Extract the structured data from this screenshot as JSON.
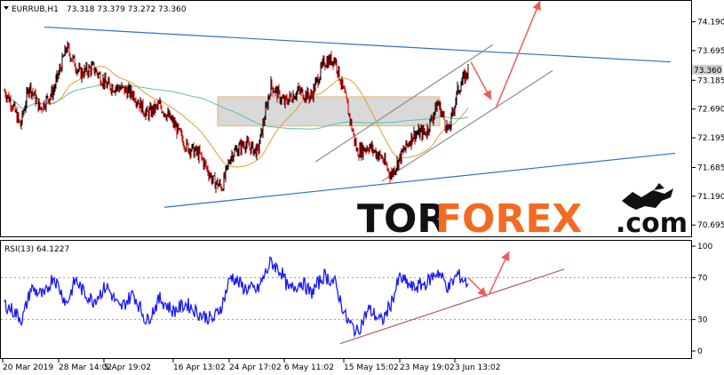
{
  "chart_data": [
    {
      "type": "candlestick",
      "symbol_header": "EURRUB,H1",
      "ohlc_header": "73.318 73.379 73.272 73.360",
      "current_price_label": "73.360",
      "ylim": [
        70.5,
        74.55
      ],
      "y_ticks": [
        "74.190",
        "73.695",
        "73.185",
        "72.690",
        "72.195",
        "71.685",
        "71.190",
        "70.695"
      ],
      "x_ticks": [
        "20 Mar 2019",
        "28 Mar 14:02",
        "5 Apr 19:02",
        "16 Apr 13:02",
        "24 Apr 17:02",
        "6 May 11:02",
        "15 May 15:02",
        "23 May 19:02",
        "3 Jun 13:02"
      ],
      "price_keypoints": [
        [
          0,
          73.0
        ],
        [
          8,
          72.8
        ],
        [
          18,
          72.4
        ],
        [
          28,
          73.1
        ],
        [
          40,
          72.7
        ],
        [
          55,
          73.0
        ],
        [
          70,
          73.75
        ],
        [
          85,
          73.3
        ],
        [
          100,
          73.4
        ],
        [
          115,
          73.1
        ],
        [
          130,
          73.05
        ],
        [
          145,
          72.95
        ],
        [
          160,
          72.6
        ],
        [
          175,
          72.75
        ],
        [
          190,
          72.45
        ],
        [
          205,
          72.05
        ],
        [
          220,
          71.9
        ],
        [
          235,
          71.45
        ],
        [
          245,
          71.35
        ],
        [
          255,
          71.9
        ],
        [
          270,
          72.1
        ],
        [
          285,
          71.95
        ],
        [
          300,
          73.1
        ],
        [
          315,
          72.8
        ],
        [
          330,
          73.0
        ],
        [
          345,
          72.9
        ],
        [
          360,
          73.5
        ],
        [
          372,
          73.55
        ],
        [
          385,
          72.8
        ],
        [
          397,
          71.95
        ],
        [
          410,
          72.05
        ],
        [
          425,
          71.85
        ],
        [
          435,
          71.55
        ],
        [
          445,
          71.85
        ],
        [
          460,
          72.25
        ],
        [
          475,
          72.3
        ],
        [
          488,
          72.8
        ],
        [
          500,
          72.3
        ],
        [
          510,
          73.0
        ],
        [
          522,
          73.36
        ]
      ],
      "zone_box": {
        "from_index": 240,
        "to_index": 490,
        "low": 72.4,
        "high": 72.9
      },
      "trend_lines": [
        {
          "color": "#2f6fd6",
          "points": [
            [
              45,
              74.1
            ],
            [
              750,
              73.5
            ]
          ]
        },
        {
          "color": "#2f6fd6",
          "points": [
            [
              180,
              71.0
            ],
            [
              755,
              71.93
            ]
          ]
        },
        {
          "color": "#8c8c8c",
          "points": [
            [
              350,
              71.78
            ],
            [
              550,
              73.8
            ]
          ]
        },
        {
          "color": "#8c8c8c",
          "points": [
            [
              425,
              71.45
            ],
            [
              617,
              73.35
            ]
          ]
        }
      ],
      "forecast_arrows": [
        {
          "color": "#f05b55",
          "points": [
            [
              525,
              73.5
            ],
            [
              548,
              72.85
            ]
          ]
        },
        {
          "color": "#f05b55",
          "points": [
            [
              553,
              72.7
            ],
            [
              603,
              74.55
            ]
          ]
        }
      ]
    },
    {
      "type": "line",
      "indicator_header": "RSI(13) 64.1227",
      "ylim": [
        0,
        100
      ],
      "y_ticks": [
        "100",
        "70",
        "30",
        "0"
      ],
      "levels": [
        70,
        30
      ],
      "rsi_keypoints": [
        [
          0,
          45
        ],
        [
          10,
          38
        ],
        [
          20,
          30
        ],
        [
          30,
          60
        ],
        [
          45,
          52
        ],
        [
          55,
          72
        ],
        [
          70,
          45
        ],
        [
          80,
          68
        ],
        [
          90,
          55
        ],
        [
          100,
          48
        ],
        [
          115,
          62
        ],
        [
          130,
          40
        ],
        [
          145,
          55
        ],
        [
          160,
          28
        ],
        [
          175,
          50
        ],
        [
          190,
          38
        ],
        [
          205,
          45
        ],
        [
          220,
          35
        ],
        [
          235,
          30
        ],
        [
          245,
          44
        ],
        [
          255,
          72
        ],
        [
          270,
          60
        ],
        [
          285,
          58
        ],
        [
          300,
          85
        ],
        [
          312,
          75
        ],
        [
          320,
          58
        ],
        [
          335,
          66
        ],
        [
          345,
          55
        ],
        [
          360,
          72
        ],
        [
          372,
          65
        ],
        [
          385,
          30
        ],
        [
          397,
          18
        ],
        [
          410,
          40
        ],
        [
          425,
          28
        ],
        [
          435,
          45
        ],
        [
          445,
          70
        ],
        [
          460,
          60
        ],
        [
          475,
          65
        ],
        [
          488,
          76
        ],
        [
          500,
          60
        ],
        [
          510,
          73
        ],
        [
          522,
          64.12
        ]
      ],
      "trend_lines": [
        {
          "color": "#b06060",
          "points": [
            [
              378,
              7
            ],
            [
              630,
              78
            ]
          ]
        }
      ],
      "forecast_arrows": [
        {
          "color": "#f05b55",
          "points": [
            [
              522,
              70
            ],
            [
              543,
              52
            ]
          ]
        },
        {
          "color": "#f05b55",
          "points": [
            [
              546,
              55
            ],
            [
              568,
              95
            ]
          ]
        }
      ]
    }
  ],
  "watermark": {
    "tor": "TOR",
    "forex": "FOREX",
    "com": ".com"
  },
  "colors": {
    "bull_candle": "#000000",
    "bear_candle": "#d20000",
    "ma_fast": "#e0a030",
    "ma_slow": "#5fc0a8",
    "rsi_line": "#1a1aff",
    "zone_fill": "#d9d9d9",
    "zone_border": "#e6b766",
    "price_label_bg": "#cfcfcf"
  }
}
